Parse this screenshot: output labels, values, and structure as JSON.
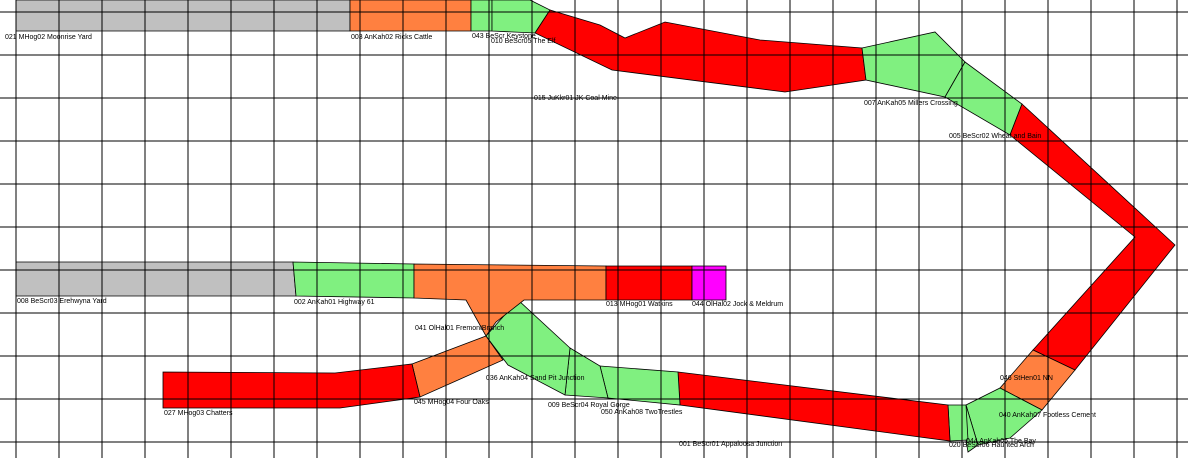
{
  "colors": {
    "free": "#80f080",
    "occupied": "#ff0000",
    "reserved": "#ff8040",
    "yard": "#c0c0c0",
    "selected": "#ff00ff",
    "grid": "#000000"
  },
  "blocks": [
    {
      "id": "021",
      "label": "021 MHog02 Moonrise Yard",
      "state": "yard"
    },
    {
      "id": "003",
      "label": "003 AnKah02 Ricks Cattle",
      "state": "reserved"
    },
    {
      "id": "043",
      "label": "043 BeScr Keystone",
      "state": "free"
    },
    {
      "id": "010",
      "label": "010 BeScr05 The Elf",
      "state": "free"
    },
    {
      "id": "015",
      "label": "015 JuKkr01 JK Coal Mine",
      "state": "occupied"
    },
    {
      "id": "007",
      "label": "007 AnKah05 Millers Crossing",
      "state": "free"
    },
    {
      "id": "005",
      "label": "005 BeScr02 Wheat and Bain",
      "state": "free"
    },
    {
      "id": "005b",
      "label": "",
      "state": "occupied"
    },
    {
      "id": "046",
      "label": "046 StHen01 NN",
      "state": "reserved"
    },
    {
      "id": "040",
      "label": "040 AnKah07 Footless Cement",
      "state": "free"
    },
    {
      "id": "044b",
      "label": "044 AnKah06 The Bay",
      "state": "free"
    },
    {
      "id": "020",
      "label": "020 BeScr06 Haunted Arch",
      "state": "free"
    },
    {
      "id": "001",
      "label": "001 BeScr01 Appaloosa Junction",
      "state": "occupied"
    },
    {
      "id": "050",
      "label": "050 AnKah08 TwoTrestles",
      "state": "free"
    },
    {
      "id": "009",
      "label": "009 BeScr04 Royal Gorge",
      "state": "free"
    },
    {
      "id": "036",
      "label": "036 AnKah04 Sand Pit Junction",
      "state": "free"
    },
    {
      "id": "045",
      "label": "045 MHog04 Four Oaks",
      "state": "reserved"
    },
    {
      "id": "027",
      "label": "027 MHog03 Chatters",
      "state": "occupied"
    },
    {
      "id": "008",
      "label": "008 BeScr03 Erehwyna Yard",
      "state": "yard"
    },
    {
      "id": "002",
      "label": "002 AnKah01 Highway 61",
      "state": "free"
    },
    {
      "id": "041",
      "label": "041 OlHal01 FremontBranch",
      "state": "reserved"
    },
    {
      "id": "013",
      "label": "013 MHog01 Watkins",
      "state": "occupied"
    },
    {
      "id": "044",
      "label": "044 OlHal02 Jock & Meldrum",
      "state": "selected"
    }
  ]
}
